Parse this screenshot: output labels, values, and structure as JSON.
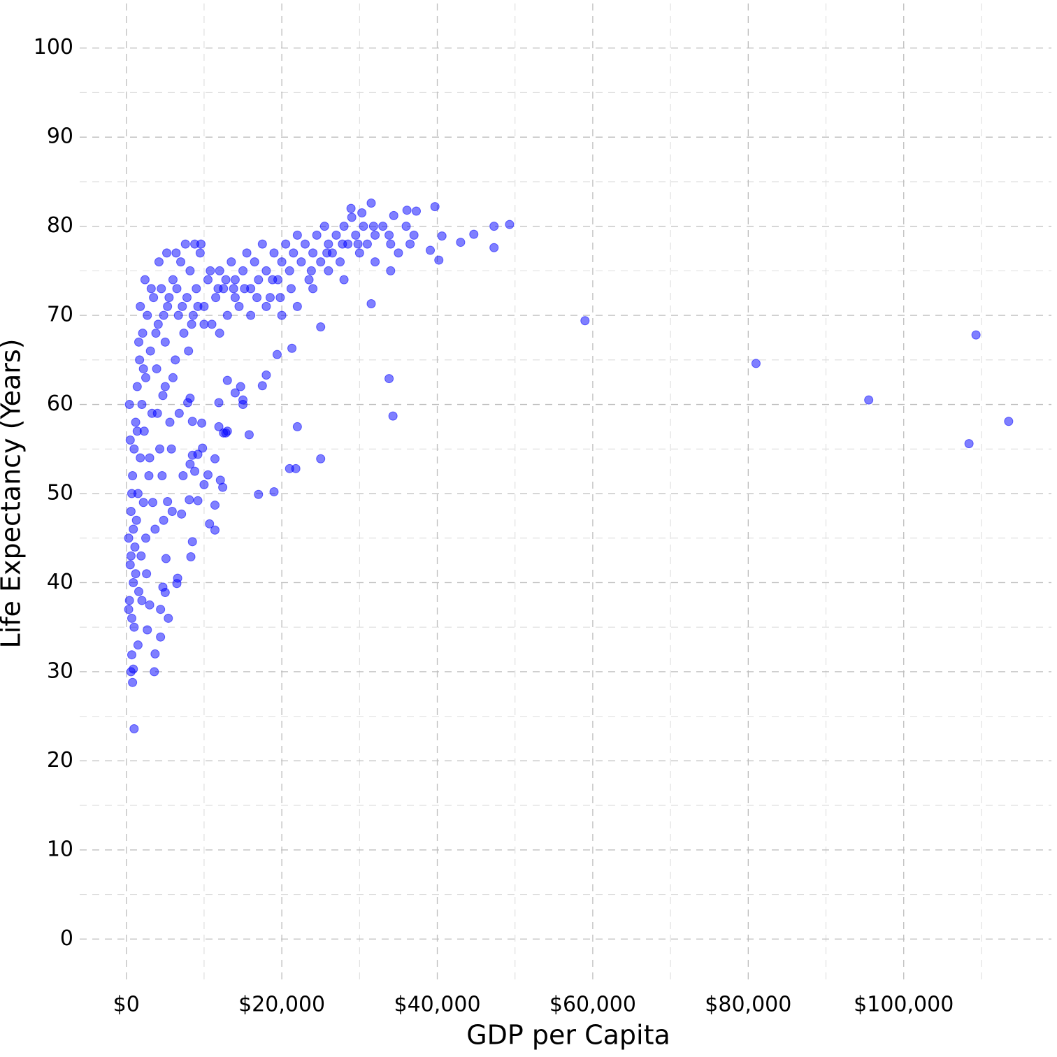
{
  "chart_data": {
    "type": "scatter",
    "x_label": "GDP per Capita",
    "y_label": "Life Expectancy (Years)",
    "color": "#0000ff",
    "grid": true,
    "xlim": [
      -6000,
      119000
    ],
    "ylim": [
      -5,
      105
    ],
    "xticks": [
      {
        "value": 0,
        "label": "$0"
      },
      {
        "value": 20000,
        "label": "$20,000"
      },
      {
        "value": 40000,
        "label": "$40,000"
      },
      {
        "value": 60000,
        "label": "$60,000"
      },
      {
        "value": 80000,
        "label": "$80,000"
      },
      {
        "value": 100000,
        "label": "$100,000"
      }
    ],
    "yticks": [
      0,
      10,
      20,
      30,
      40,
      50,
      60,
      70,
      80,
      90,
      100
    ],
    "xticks_minor": [
      10000,
      30000,
      50000,
      70000,
      90000,
      110000
    ],
    "yticks_minor": [
      5,
      15,
      25,
      35,
      45,
      55,
      65,
      75,
      85,
      95
    ],
    "x": [
      59000,
      81000,
      95500,
      108400,
      109300,
      113500,
      39700,
      49300,
      47300,
      47300,
      43000,
      44700,
      40200,
      40600,
      39100,
      31500,
      28900,
      30300,
      37300,
      36100,
      34400,
      33800,
      34300,
      31500,
      25000,
      25000,
      22000,
      21000,
      21800,
      21300,
      19000,
      17000,
      19400,
      18000,
      17500,
      15000,
      15000,
      15800,
      14000,
      13000,
      14700,
      12800,
      12500,
      11900,
      11900,
      13000,
      12100,
      12400,
      11400,
      11400,
      10500,
      10700,
      11400,
      9200,
      10000,
      9700,
      9800,
      9200,
      8500,
      8200,
      7900,
      8500,
      8200,
      8800,
      8100,
      8500,
      8300,
      7100,
      7300,
      6600,
      6500,
      5900,
      5300,
      5400,
      5000,
      4400,
      4700,
      4800,
      5100,
      3700,
      3600,
      4400,
      2700,
      3000,
      1000,
      800,
      900,
      600,
      700,
      300,
      400,
      500,
      600,
      700,
      800,
      900,
      1000,
      1100,
      1200,
      1300,
      1400,
      1500,
      1600,
      1700,
      1800,
      1900,
      2000,
      2100,
      2200,
      2300,
      2500,
      2700,
      2900,
      3100,
      3300,
      3500,
      3700,
      3900,
      4100,
      4300,
      4500,
      4700,
      5000,
      5300,
      5600,
      6000,
      6300,
      6700,
      7000,
      7400,
      7800,
      8200,
      8600,
      9000,
      9500,
      10000,
      10500,
      11000,
      11500,
      12000,
      12500,
      13000,
      13500,
      14000,
      14500,
      15000,
      15500,
      16000,
      16500,
      17000,
      17500,
      18000,
      18500,
      19000,
      19500,
      20000,
      20500,
      21000,
      21500,
      22000,
      22500,
      23000,
      23500,
      24000,
      24500,
      25000,
      25500,
      26000,
      26500,
      27000,
      27500,
      28000,
      28500,
      29000,
      29500,
      30000,
      30500,
      31000,
      32000,
      33000,
      34000,
      35000,
      36000,
      37000,
      32000,
      34000,
      28000,
      26000,
      24000,
      22000,
      20000,
      18000,
      16000,
      14000,
      12000,
      10000,
      8000,
      6000,
      5000,
      4000,
      3000,
      2500,
      2000,
      1500,
      1000,
      1200,
      900,
      700,
      500,
      400,
      300,
      600,
      1800,
      1600,
      2400,
      3200,
      4200,
      5200,
      6400,
      7600,
      8800,
      9600,
      6800,
      5800,
      4600,
      3400,
      2600,
      1400,
      2200,
      3800,
      4800,
      5500,
      6500,
      7200,
      8400,
      9200,
      10800,
      11800,
      12800,
      13800,
      15200,
      16800,
      18800,
      19800,
      21200,
      23800,
      25800,
      27800,
      29800,
      31800,
      33800,
      36500
    ],
    "values": [
      69.4,
      64.6,
      60.5,
      55.6,
      67.8,
      58.1,
      82.2,
      80.2,
      80.0,
      77.6,
      78.2,
      79.1,
      76.2,
      78.9,
      77.3,
      82.6,
      82.0,
      81.5,
      81.7,
      81.8,
      81.2,
      62.9,
      58.7,
      71.3,
      68.7,
      53.9,
      57.5,
      52.8,
      52.8,
      66.3,
      50.2,
      49.9,
      65.6,
      63.3,
      62.1,
      60.5,
      60.0,
      56.6,
      61.3,
      62.7,
      62.0,
      56.8,
      56.8,
      57.5,
      60.2,
      57.0,
      51.5,
      50.7,
      48.7,
      53.9,
      52.1,
      46.6,
      45.9,
      49.2,
      51.0,
      57.9,
      55.1,
      54.4,
      58.1,
      60.7,
      60.2,
      54.3,
      53.3,
      52.5,
      49.3,
      44.6,
      42.9,
      47.7,
      52.0,
      40.5,
      39.9,
      48.0,
      49.1,
      36.0,
      38.9,
      37.0,
      39.5,
      47.0,
      42.7,
      32.0,
      30.0,
      33.9,
      34.7,
      37.5,
      23.6,
      28.8,
      30.3,
      30.0,
      31.9,
      45,
      38,
      42,
      48,
      36,
      52,
      40,
      55,
      44,
      58,
      47,
      62,
      50,
      39,
      65,
      54,
      43,
      60,
      68,
      49,
      57,
      63,
      70,
      52,
      66,
      59,
      72,
      46,
      64,
      69,
      55,
      73,
      61,
      67,
      71,
      58,
      74,
      65,
      70,
      76,
      68,
      72,
      75,
      70,
      73,
      77,
      71,
      74,
      69,
      72,
      75,
      73,
      70,
      76,
      74,
      71,
      75,
      77,
      73,
      76,
      74,
      78,
      75,
      72,
      77,
      74,
      76,
      78,
      75,
      77,
      79,
      76,
      78,
      74,
      77,
      79,
      76,
      80,
      78,
      77,
      79,
      76,
      80,
      78,
      81,
      79,
      77,
      80,
      78,
      79,
      80,
      78,
      77,
      80,
      79,
      76,
      75,
      74,
      75,
      73,
      71,
      70,
      71,
      70,
      72,
      68,
      69,
      66,
      63,
      62,
      59,
      54,
      45,
      38,
      33,
      35,
      41,
      46,
      50,
      56,
      60,
      37,
      43,
      71,
      67,
      74,
      73,
      76,
      77,
      77,
      78,
      78,
      78,
      59,
      55,
      52,
      49,
      41,
      57,
      64,
      68,
      70,
      72,
      73,
      71,
      69,
      71,
      75,
      73,
      74,
      73,
      73,
      72,
      74,
      72,
      73,
      75,
      77,
      78,
      78,
      80,
      79,
      78
    ]
  }
}
